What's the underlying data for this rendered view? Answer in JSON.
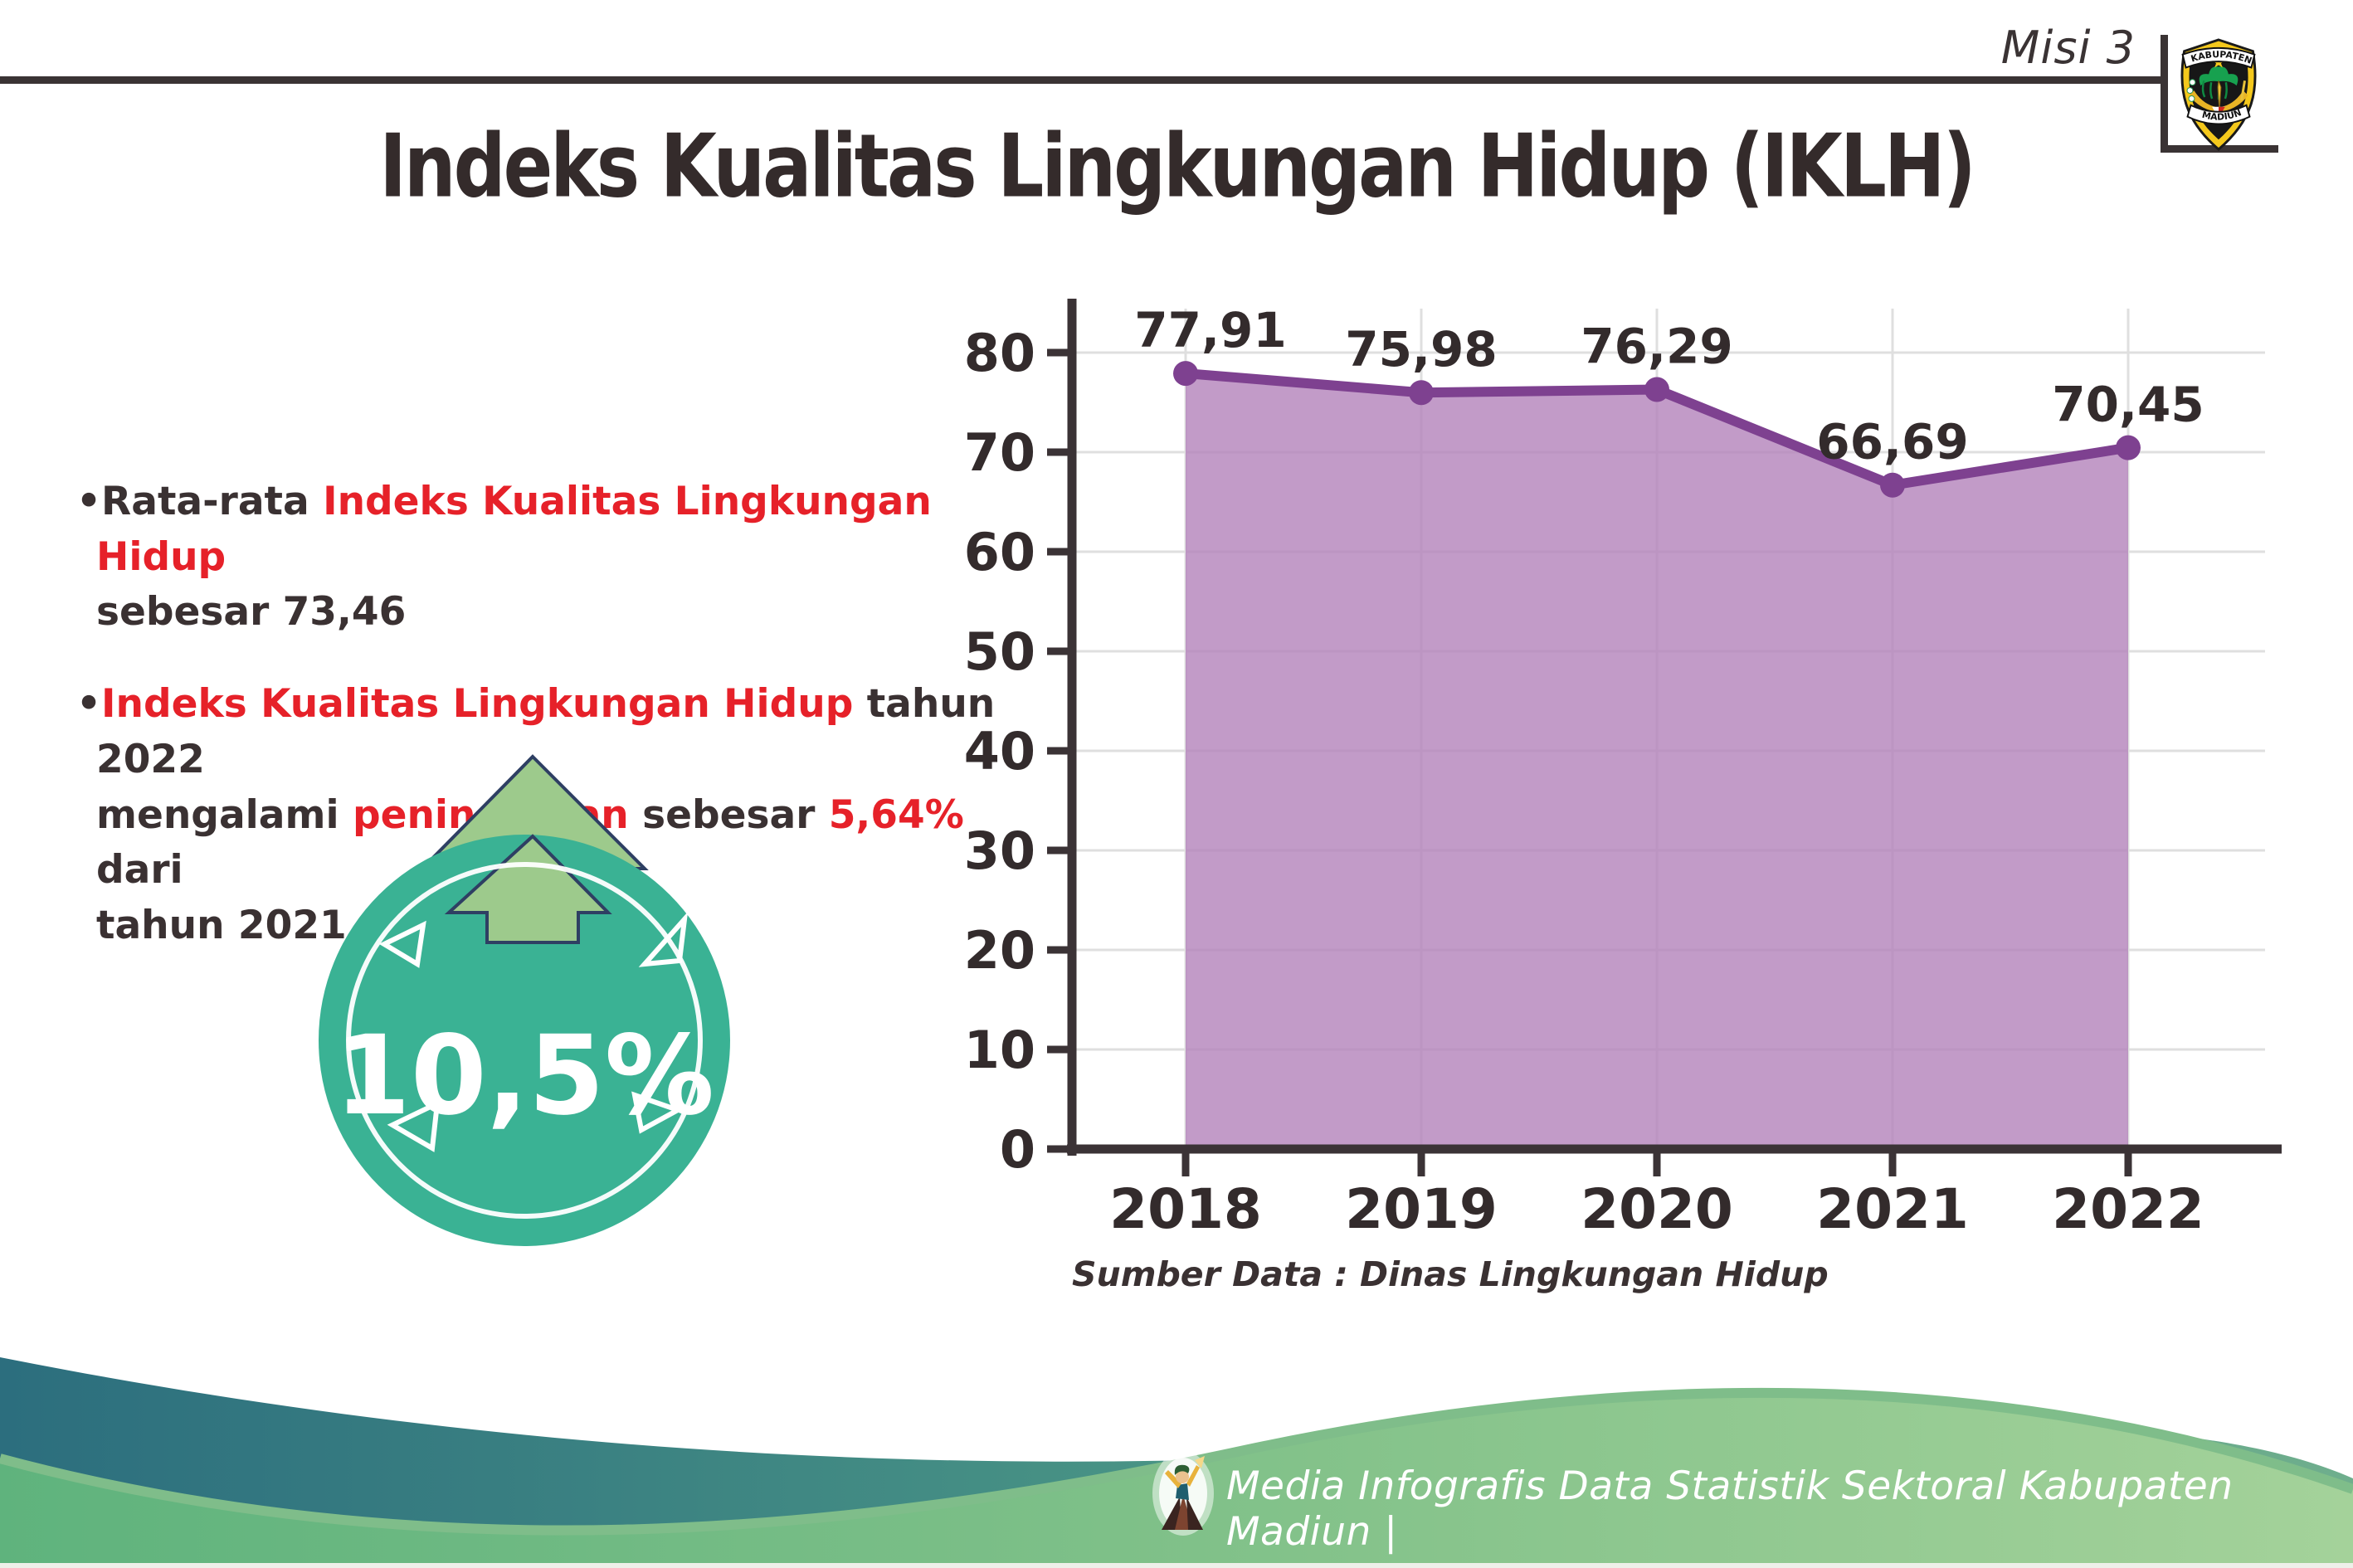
{
  "page": {
    "misi_label": "Misi 3"
  },
  "logo": {
    "top_text": "KABUPATEN",
    "bottom_text": "MADIUN"
  },
  "title": "Indeks Kualitas Lingkungan Hidup (IKLH)",
  "bullets": [
    {
      "marker": "•",
      "lines": [
        [
          {
            "t": "Rata-rata "
          },
          {
            "t": "Indeks Kualitas Lingkungan Hidup",
            "red": true
          }
        ],
        [
          {
            "t": "sebesar 73,46"
          }
        ]
      ]
    },
    {
      "marker": "•",
      "lines": [
        [
          {
            "t": "Indeks Kualitas Lingkungan Hidup",
            "red": true
          },
          {
            "t": " tahun 2022"
          }
        ],
        [
          {
            "t": "mengalami "
          },
          {
            "t": "peningkatan",
            "red": true
          },
          {
            "t": " sebesar "
          },
          {
            "t": "5,64%",
            "red": true
          },
          {
            "t": " dari"
          }
        ],
        [
          {
            "t": "tahun 2021"
          }
        ]
      ]
    }
  ],
  "badge": {
    "value": "10,5%",
    "direction": "up"
  },
  "chart_data": {
    "type": "area",
    "categories": [
      "2018",
      "2019",
      "2020",
      "2021",
      "2022"
    ],
    "values": [
      77.91,
      75.98,
      76.29,
      66.69,
      70.45
    ],
    "point_labels": [
      "77,91",
      "75,98",
      "76,29",
      "66,69",
      "70,45"
    ],
    "ylim": [
      0,
      80
    ],
    "ytick_step": 10,
    "grid": true,
    "legend": "none",
    "title": "",
    "xlabel": "",
    "ylabel": "",
    "source_note": "Sumber Data : Dinas Lingkungan Hidup",
    "series_color": "#7e4190",
    "fill_color": "#b585bc"
  },
  "footer": {
    "credit_text": "Media Infografis Data Statistik Sektoral Kabupaten Madiun |"
  },
  "colors": {
    "accent_red": "#e62129",
    "text_dark": "#3a3132",
    "axis_dark": "#3b3336",
    "grid_gray": "#dfdfdf",
    "teal_badge": "#3ab294",
    "arrow_green": "#9dca8c",
    "arrow_outline_navy": "#2e3f63",
    "footer_teal_dark": "#2c6e7e",
    "footer_teal_light": "#6fae8d",
    "footer_green_left": "#5fb37d",
    "footer_green_right": "#a4d29a",
    "footer_edge_green": "#7fbd8a"
  }
}
